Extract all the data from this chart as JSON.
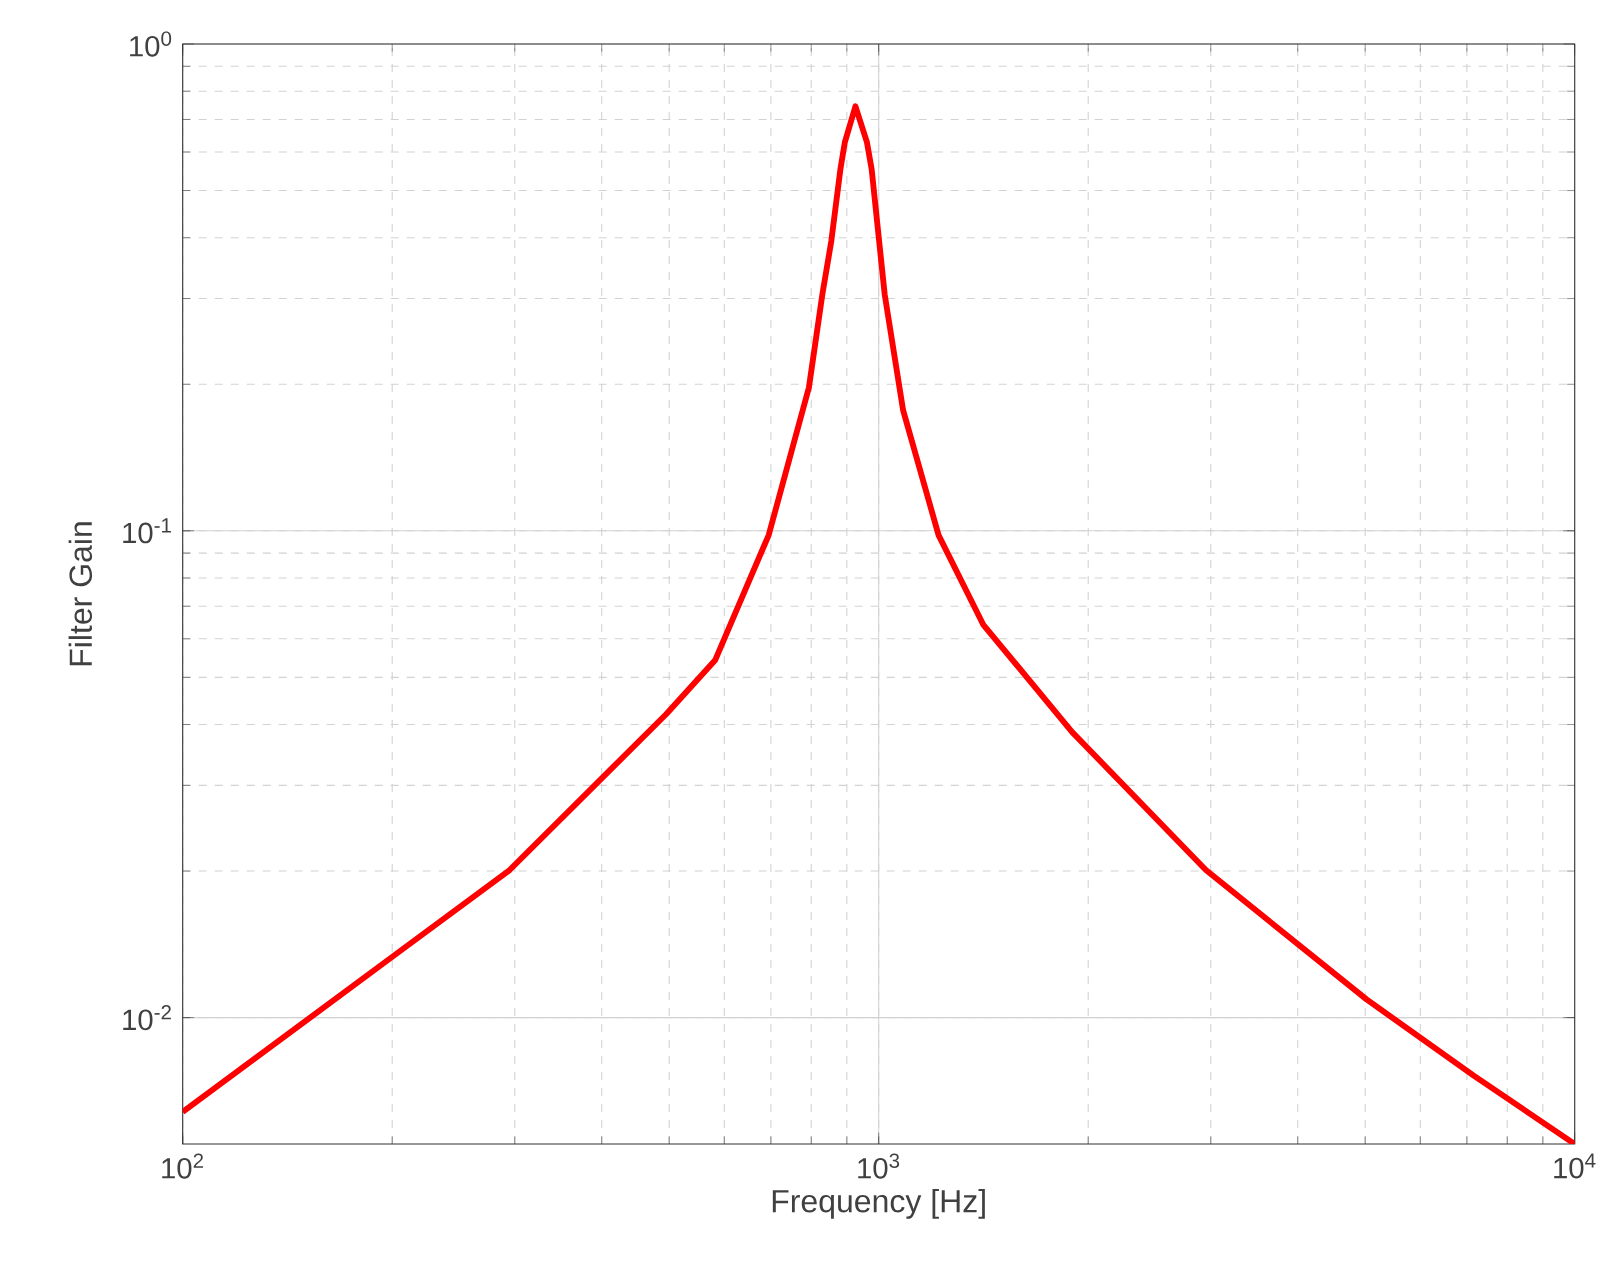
{
  "chart_data": {
    "type": "line",
    "xlabel": "Frequency [Hz]",
    "ylabel": "Filter Gain",
    "log": "xy",
    "grid": true,
    "marker": "none",
    "line_style": "solid",
    "xlim": [
      100,
      10000
    ],
    "ylim": [
      0.0055,
      1
    ],
    "xticks": [
      {
        "value": 100,
        "label": "10$^{2}$"
      },
      {
        "value": 1000,
        "label": "10$^{3}$"
      },
      {
        "value": 10000,
        "label": "10$^{4}$"
      }
    ],
    "yticks": [
      {
        "value": 0.01,
        "label": "10$^{-2}$"
      },
      {
        "value": 0.1,
        "label": "10$^{-1}$"
      },
      {
        "value": 1,
        "label": "10$^{0}$"
      }
    ],
    "x": [
      100,
      201,
      295,
      495,
      582,
      695,
      794,
      830,
      855,
      881,
      894,
      926,
      962,
      977,
      1020,
      1084,
      1219,
      1413,
      1897,
      2952,
      5023,
      7160,
      10000
    ],
    "series": [
      {
        "color": "#ff0000",
        "values": [
          0.0064,
          0.0134,
          0.0201,
          0.042,
          0.0542,
          0.098,
          0.197,
          0.306,
          0.394,
          0.553,
          0.628,
          0.745,
          0.628,
          0.553,
          0.306,
          0.177,
          0.098,
          0.0642,
          0.0386,
          0.0201,
          0.0109,
          0.0076,
          0.0055
        ]
      }
    ]
  }
}
